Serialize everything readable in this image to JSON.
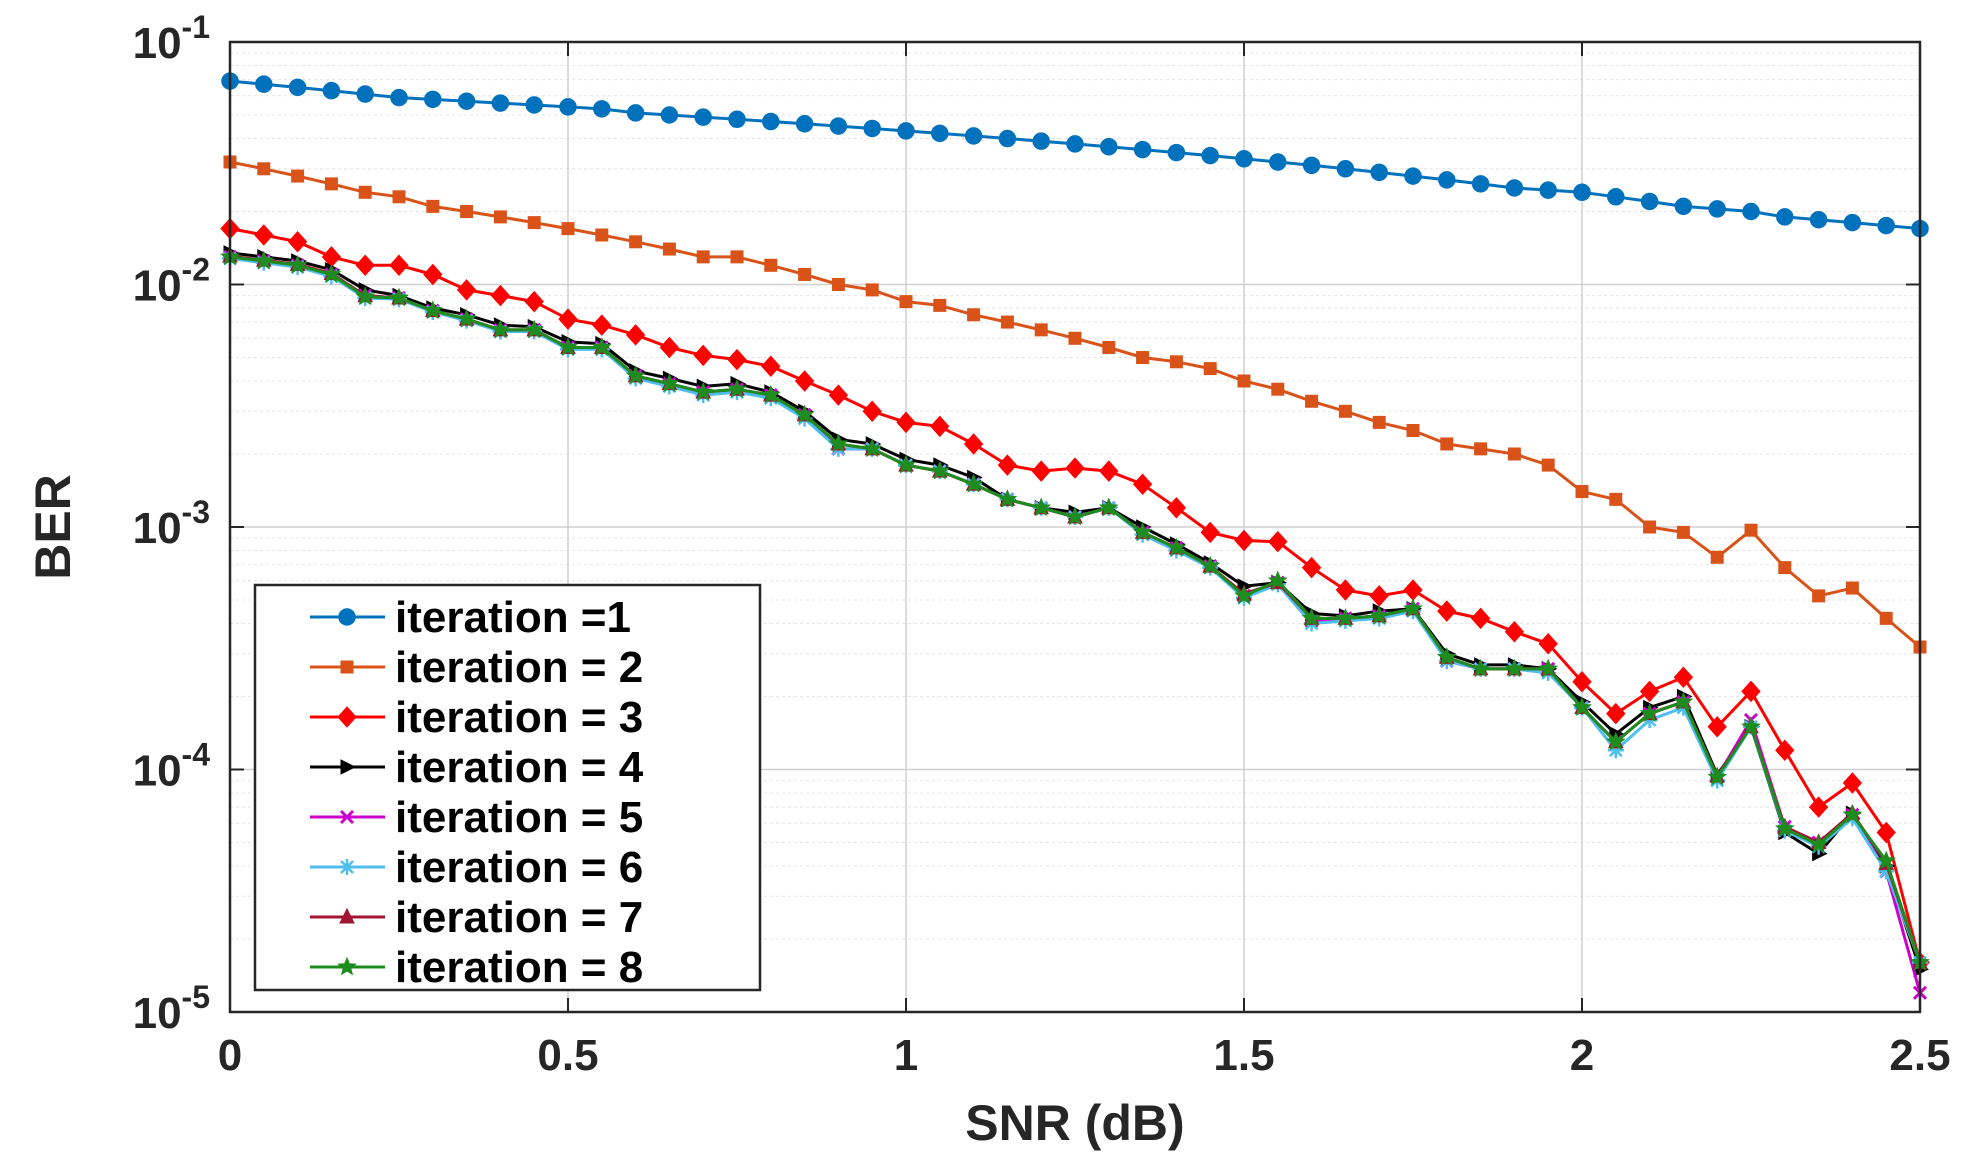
{
  "chart_data": {
    "type": "line",
    "xlabel": "SNR (dB)",
    "ylabel": "BER",
    "xlim": [
      0,
      2.5
    ],
    "ylim": [
      1e-05,
      0.1
    ],
    "yscale": "log",
    "grid": true,
    "legend_position": "bottom-left",
    "x_ticks": [
      0,
      0.5,
      1,
      1.5,
      2,
      2.5
    ],
    "x_tick_labels": [
      "0",
      "0.5",
      "1",
      "1.5",
      "2",
      "2.5"
    ],
    "y_ticks": [
      1e-05,
      0.0001,
      0.001,
      0.01,
      0.1
    ],
    "y_tick_labels": [
      {
        "base": "10",
        "exp": "-5"
      },
      {
        "base": "10",
        "exp": "-4"
      },
      {
        "base": "10",
        "exp": "-3"
      },
      {
        "base": "10",
        "exp": "-2"
      },
      {
        "base": "10",
        "exp": "-1"
      }
    ],
    "x": [
      0,
      0.05,
      0.1,
      0.15,
      0.2,
      0.25,
      0.3,
      0.35,
      0.4,
      0.45,
      0.5,
      0.55,
      0.6,
      0.65,
      0.7,
      0.75,
      0.8,
      0.85,
      0.9,
      0.95,
      1.0,
      1.05,
      1.1,
      1.15,
      1.2,
      1.25,
      1.3,
      1.35,
      1.4,
      1.45,
      1.5,
      1.55,
      1.6,
      1.65,
      1.7,
      1.75,
      1.8,
      1.85,
      1.9,
      1.95,
      2.0,
      2.05,
      2.1,
      2.15,
      2.2,
      2.25,
      2.3,
      2.35,
      2.4,
      2.45,
      2.5
    ],
    "series": [
      {
        "name": "iteration =1",
        "color": "#0072BD",
        "marker": "circle",
        "values": [
          0.069,
          0.067,
          0.065,
          0.063,
          0.061,
          0.059,
          0.058,
          0.057,
          0.056,
          0.055,
          0.054,
          0.053,
          0.051,
          0.05,
          0.049,
          0.048,
          0.047,
          0.046,
          0.045,
          0.044,
          0.043,
          0.042,
          0.041,
          0.04,
          0.039,
          0.038,
          0.037,
          0.036,
          0.035,
          0.034,
          0.033,
          0.032,
          0.031,
          0.03,
          0.029,
          0.028,
          0.027,
          0.026,
          0.025,
          0.0245,
          0.024,
          0.023,
          0.022,
          0.021,
          0.0205,
          0.02,
          0.019,
          0.0185,
          0.018,
          0.0175,
          0.017
        ]
      },
      {
        "name": "iteration = 2",
        "color": "#D95319",
        "marker": "square",
        "values": [
          0.032,
          0.03,
          0.028,
          0.026,
          0.024,
          0.023,
          0.021,
          0.02,
          0.019,
          0.018,
          0.017,
          0.016,
          0.015,
          0.014,
          0.013,
          0.013,
          0.012,
          0.011,
          0.01,
          0.0095,
          0.0085,
          0.0082,
          0.0075,
          0.007,
          0.0065,
          0.006,
          0.0055,
          0.005,
          0.0048,
          0.0045,
          0.004,
          0.0037,
          0.0033,
          0.003,
          0.0027,
          0.0025,
          0.0022,
          0.0021,
          0.002,
          0.0018,
          0.0014,
          0.0013,
          0.001,
          0.00095,
          0.00075,
          0.00097,
          0.00068,
          0.00052,
          0.00056,
          0.00042,
          0.00032
        ]
      },
      {
        "name": "iteration = 3",
        "color": "#FF0000",
        "marker": "diamond",
        "values": [
          0.017,
          0.016,
          0.015,
          0.013,
          0.012,
          0.012,
          0.011,
          0.0095,
          0.009,
          0.0085,
          0.0072,
          0.0068,
          0.0062,
          0.0055,
          0.0051,
          0.0049,
          0.0046,
          0.004,
          0.0035,
          0.003,
          0.0027,
          0.0026,
          0.0022,
          0.0018,
          0.0017,
          0.00175,
          0.0017,
          0.0015,
          0.0012,
          0.00095,
          0.00088,
          0.00087,
          0.00068,
          0.00055,
          0.00052,
          0.00055,
          0.00045,
          0.00042,
          0.00037,
          0.00033,
          0.00023,
          0.00017,
          0.00021,
          0.00024,
          0.00015,
          0.00021,
          0.00012,
          7e-05,
          8.8e-05,
          5.5e-05,
          1.6e-05
        ]
      },
      {
        "name": "iteration = 4",
        "color": "#000000",
        "marker": "triangle-right",
        "values": [
          0.0135,
          0.013,
          0.0125,
          0.0115,
          0.0095,
          0.009,
          0.008,
          0.0075,
          0.0068,
          0.0067,
          0.0058,
          0.0057,
          0.0044,
          0.0041,
          0.0038,
          0.0039,
          0.0036,
          0.003,
          0.0023,
          0.0022,
          0.0019,
          0.0018,
          0.0016,
          0.0013,
          0.0012,
          0.00115,
          0.0012,
          0.001,
          0.00085,
          0.00071,
          0.00057,
          0.00059,
          0.00044,
          0.00043,
          0.00045,
          0.00046,
          0.0003,
          0.00027,
          0.00027,
          0.00026,
          0.00019,
          0.00014,
          0.00018,
          0.0002,
          9.5e-05,
          0.00015,
          5.5e-05,
          4.5e-05,
          6.6e-05,
          4e-05,
          1.5e-05
        ]
      },
      {
        "name": "iteration = 5",
        "color": "#CC00CC",
        "marker": "x",
        "values": [
          0.013,
          0.0125,
          0.012,
          0.011,
          0.009,
          0.0088,
          0.0078,
          0.0072,
          0.0065,
          0.0065,
          0.0055,
          0.0055,
          0.0042,
          0.0039,
          0.0036,
          0.0037,
          0.0035,
          0.0029,
          0.0021,
          0.0021,
          0.0018,
          0.0017,
          0.0015,
          0.0013,
          0.0012,
          0.0011,
          0.0012,
          0.00095,
          0.00082,
          0.00069,
          0.00052,
          0.00059,
          0.00041,
          0.00042,
          0.00043,
          0.00046,
          0.00028,
          0.00026,
          0.00026,
          0.00026,
          0.00018,
          0.00013,
          0.00017,
          0.00019,
          9.3e-05,
          0.00016,
          5.8e-05,
          5e-05,
          6.5e-05,
          3.8e-05,
          1.2e-05
        ]
      },
      {
        "name": "iteration = 6",
        "color": "#4DBEEE",
        "marker": "asterisk",
        "values": [
          0.0128,
          0.0123,
          0.0118,
          0.0108,
          0.0088,
          0.0087,
          0.0077,
          0.0071,
          0.0064,
          0.0064,
          0.0054,
          0.0054,
          0.0041,
          0.0038,
          0.0035,
          0.0036,
          0.0034,
          0.0028,
          0.0021,
          0.0021,
          0.0018,
          0.0017,
          0.0015,
          0.0013,
          0.0012,
          0.0011,
          0.0012,
          0.00093,
          0.0008,
          0.00068,
          0.00051,
          0.00058,
          0.0004,
          0.00041,
          0.00042,
          0.00045,
          0.00028,
          0.00026,
          0.00026,
          0.00025,
          0.00018,
          0.00012,
          0.00016,
          0.00018,
          9e-05,
          0.00015,
          5.6e-05,
          4.8e-05,
          6.3e-05,
          3.8e-05,
          1.6e-05
        ]
      },
      {
        "name": "iteration = 7",
        "color": "#A2142F",
        "marker": "triangle-up",
        "values": [
          0.0131,
          0.0126,
          0.0121,
          0.0111,
          0.009,
          0.0088,
          0.0078,
          0.0072,
          0.0065,
          0.0065,
          0.0055,
          0.0055,
          0.0042,
          0.0039,
          0.0036,
          0.0037,
          0.0035,
          0.0029,
          0.0022,
          0.0021,
          0.0018,
          0.0017,
          0.0015,
          0.0013,
          0.0012,
          0.0011,
          0.0012,
          0.00095,
          0.00082,
          0.00069,
          0.00053,
          0.00059,
          0.00042,
          0.00042,
          0.00043,
          0.00046,
          0.00029,
          0.00026,
          0.00026,
          0.00026,
          0.00018,
          0.00013,
          0.00017,
          0.00019,
          9.4e-05,
          0.00015,
          5.8e-05,
          5e-05,
          6.6e-05,
          4.1e-05,
          1.6e-05
        ]
      },
      {
        "name": "iteration = 8",
        "color": "#1F8C1F",
        "marker": "pentagram",
        "values": [
          0.013,
          0.0125,
          0.012,
          0.011,
          0.0089,
          0.0088,
          0.0078,
          0.0072,
          0.0065,
          0.0065,
          0.0055,
          0.0055,
          0.0042,
          0.0039,
          0.0036,
          0.0037,
          0.0035,
          0.0029,
          0.0022,
          0.0021,
          0.0018,
          0.0017,
          0.0015,
          0.0013,
          0.0012,
          0.0011,
          0.0012,
          0.00095,
          0.00082,
          0.00069,
          0.00052,
          0.0006,
          0.00042,
          0.00042,
          0.00043,
          0.00046,
          0.00029,
          0.00026,
          0.00026,
          0.00026,
          0.00018,
          0.00013,
          0.00017,
          0.00019,
          9.3e-05,
          0.00015,
          5.7e-05,
          4.9e-05,
          6.5e-05,
          4.2e-05,
          1.6e-05
        ]
      }
    ]
  }
}
